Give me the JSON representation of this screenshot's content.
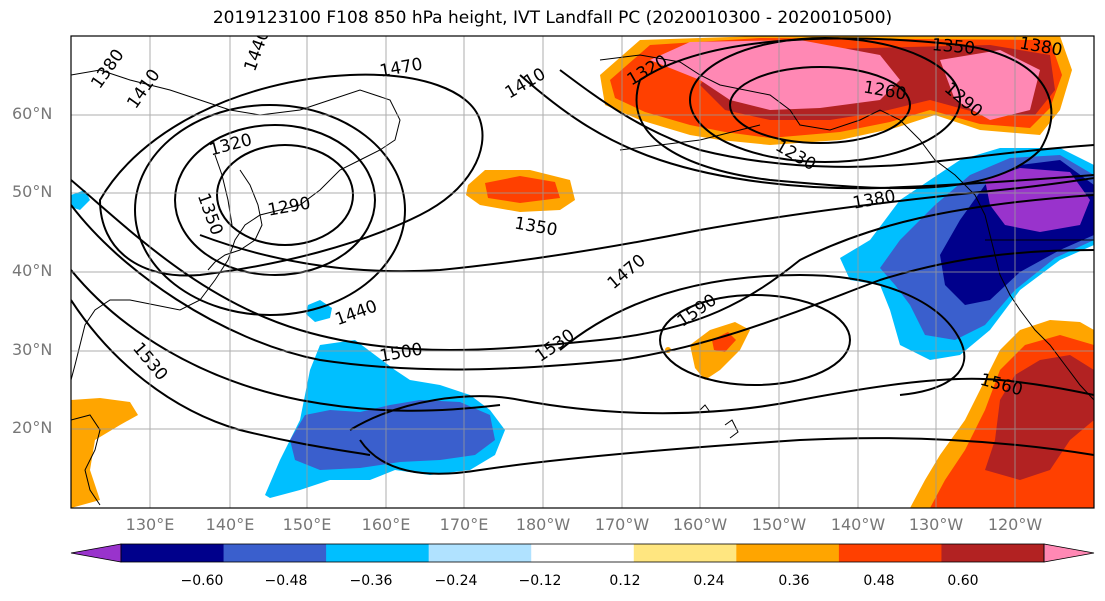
{
  "title": "2019123100 F108 850 hPa height, IVT Landfall PC (2020010300 - 2020010500)",
  "lat_labels": [
    "60°N",
    "50°N",
    "40°N",
    "30°N",
    "20°N"
  ],
  "lon_labels": [
    "130°E",
    "140°E",
    "150°E",
    "160°E",
    "170°E",
    "180°W",
    "170°W",
    "160°W",
    "150°W",
    "140°W",
    "130°W",
    "120°W"
  ],
  "contour_labels": [
    "1380",
    "1410",
    "1470",
    "1440",
    "1410",
    "1320",
    "1350",
    "1260",
    "1290",
    "1380",
    "1230",
    "1320",
    "1290",
    "1350",
    "1350",
    "1380",
    "1470",
    "1590",
    "1440",
    "1500",
    "1530",
    "1530",
    "1560"
  ],
  "colorbar": {
    "ticks": [
      "−0.60",
      "−0.48",
      "−0.36",
      "−0.24",
      "−0.12",
      "0.12",
      "0.24",
      "0.36",
      "0.48",
      "0.60"
    ],
    "colors": [
      "#9933cc",
      "#00008b",
      "#3a5fcd",
      "#00bfff",
      "#b0e2ff",
      "#ffffff",
      "#ffe680",
      "#ffa500",
      "#ff4000",
      "#b22222",
      "#ff88b4"
    ]
  }
}
